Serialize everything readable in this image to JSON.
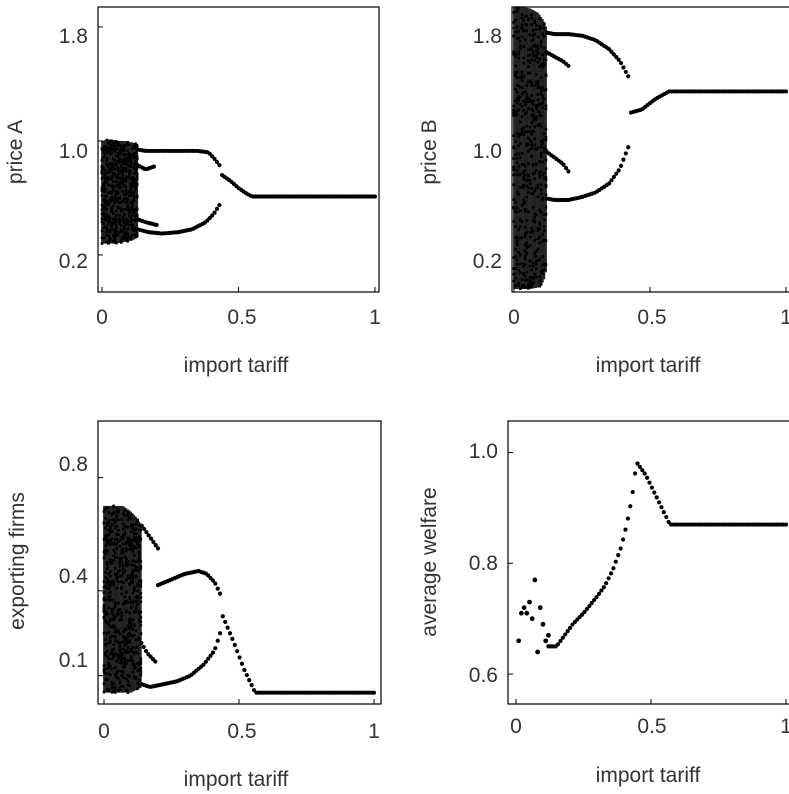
{
  "chart_data": [
    {
      "type": "scatter",
      "title": "",
      "xlabel": "import tariff",
      "ylabel": "price A",
      "xlim": [
        0,
        1
      ],
      "ylim": [
        -0.06,
        1.94
      ],
      "xticks": [
        0,
        0.5,
        1
      ],
      "xtick_labels": [
        "0",
        "0.5",
        "1"
      ],
      "yticks": [
        0.2,
        1.0,
        1.8
      ],
      "ytick_labels": [
        "0.2",
        "1.0",
        "1.8"
      ],
      "grid": false,
      "color": "#000000",
      "series": [
        {
          "kind": "band",
          "x": [
            0,
            0.02,
            0.05,
            0.08,
            0.11,
            0.13
          ],
          "low": [
            0.28,
            0.28,
            0.28,
            0.29,
            0.3,
            0.32
          ],
          "high": [
            1.0,
            1.01,
            1.0,
            1.0,
            0.99,
            0.98
          ]
        },
        {
          "kind": "curve",
          "x": [
            0.13,
            0.16,
            0.2,
            0.25,
            0.3,
            0.35,
            0.39,
            0.41,
            0.43
          ],
          "y": [
            0.94,
            0.93,
            0.93,
            0.93,
            0.93,
            0.93,
            0.92,
            0.88,
            0.83
          ]
        },
        {
          "kind": "curve",
          "x": [
            0.13,
            0.17,
            0.22,
            0.28,
            0.33,
            0.38,
            0.41,
            0.43
          ],
          "y": [
            0.38,
            0.36,
            0.35,
            0.36,
            0.38,
            0.43,
            0.49,
            0.55
          ]
        },
        {
          "kind": "curve",
          "x": [
            0.13,
            0.16,
            0.19
          ],
          "y": [
            0.83,
            0.8,
            0.82
          ]
        },
        {
          "kind": "curve",
          "x": [
            0.13,
            0.16,
            0.2
          ],
          "y": [
            0.45,
            0.43,
            0.41
          ]
        },
        {
          "kind": "curve",
          "x": [
            0.44,
            0.47,
            0.5,
            0.53,
            0.55,
            0.6,
            0.7,
            0.8,
            0.9,
            1.0
          ],
          "y": [
            0.76,
            0.72,
            0.67,
            0.63,
            0.61,
            0.61,
            0.61,
            0.61,
            0.61,
            0.61
          ]
        }
      ]
    },
    {
      "type": "scatter",
      "title": "",
      "xlabel": "import tariff",
      "ylabel": "price B",
      "xlim": [
        0,
        1
      ],
      "ylim": [
        0.05,
        1.94
      ],
      "xticks": [
        0,
        0.5,
        1
      ],
      "xtick_labels": [
        "0",
        "0.5",
        "1"
      ],
      "yticks": [
        0.2,
        1.0,
        1.8
      ],
      "ytick_labels": [
        "0.2",
        "1.0",
        "1.8"
      ],
      "grid": false,
      "color": "#000000",
      "series": [
        {
          "kind": "band",
          "x": [
            0,
            0.03,
            0.06,
            0.09,
            0.11,
            0.12
          ],
          "low": [
            0.07,
            0.07,
            0.07,
            0.08,
            0.12,
            0.2
          ],
          "high": [
            1.94,
            1.94,
            1.93,
            1.9,
            1.85,
            1.8
          ]
        },
        {
          "kind": "curve",
          "x": [
            0.12,
            0.15,
            0.2,
            0.25,
            0.3,
            0.35,
            0.39,
            0.42
          ],
          "y": [
            1.77,
            1.76,
            1.76,
            1.75,
            1.72,
            1.66,
            1.58,
            1.48
          ]
        },
        {
          "kind": "curve",
          "x": [
            0.12,
            0.15,
            0.2,
            0.25,
            0.3,
            0.35,
            0.39,
            0.42
          ],
          "y": [
            0.67,
            0.66,
            0.66,
            0.68,
            0.71,
            0.77,
            0.87,
            1.01
          ]
        },
        {
          "kind": "curve",
          "x": [
            0.12,
            0.15,
            0.18,
            0.2
          ],
          "y": [
            1.64,
            1.61,
            1.58,
            1.55
          ]
        },
        {
          "kind": "curve",
          "x": [
            0.12,
            0.15,
            0.18,
            0.2
          ],
          "y": [
            0.98,
            0.94,
            0.9,
            0.85
          ]
        },
        {
          "kind": "curve",
          "x": [
            0.43,
            0.47,
            0.52,
            0.57,
            0.6,
            0.7,
            0.8,
            0.9,
            1.0
          ],
          "y": [
            1.24,
            1.26,
            1.33,
            1.38,
            1.38,
            1.38,
            1.38,
            1.38,
            1.38
          ]
        }
      ]
    },
    {
      "type": "scatter",
      "title": "",
      "xlabel": "import tariff",
      "ylabel": "exporting firms",
      "xlim": [
        0,
        1
      ],
      "ylim": [
        0.0,
        1.0
      ],
      "xticks": [
        0,
        0.5,
        1
      ],
      "xtick_labels": [
        "0",
        "0.5",
        "1"
      ],
      "yticks": [
        0.1,
        0.4,
        0.8
      ],
      "ytick_labels": [
        "0.1",
        "0.4",
        "0.8"
      ],
      "grid": false,
      "color": "#000000",
      "series": [
        {
          "kind": "band",
          "x": [
            0,
            0.03,
            0.07,
            0.1,
            0.12,
            0.14
          ],
          "low": [
            0.04,
            0.04,
            0.04,
            0.04,
            0.05,
            0.06
          ],
          "high": [
            0.7,
            0.7,
            0.7,
            0.68,
            0.66,
            0.63
          ]
        },
        {
          "kind": "curve",
          "x": [
            0.14,
            0.17,
            0.2
          ],
          "y": [
            0.63,
            0.59,
            0.55
          ]
        },
        {
          "kind": "curve",
          "x": [
            0.2,
            0.25,
            0.3,
            0.35,
            0.38,
            0.41,
            0.43
          ],
          "y": [
            0.42,
            0.44,
            0.46,
            0.47,
            0.46,
            0.43,
            0.39
          ]
        },
        {
          "kind": "curve",
          "x": [
            0.14,
            0.17,
            0.22,
            0.27,
            0.32,
            0.37,
            0.41,
            0.43
          ],
          "y": [
            0.07,
            0.06,
            0.07,
            0.08,
            0.1,
            0.14,
            0.19,
            0.25
          ]
        },
        {
          "kind": "curve",
          "x": [
            0.13,
            0.16,
            0.19
          ],
          "y": [
            0.23,
            0.18,
            0.15
          ]
        },
        {
          "kind": "curve",
          "x": [
            0.44,
            0.48,
            0.52,
            0.56,
            0.6,
            0.7,
            0.8,
            0.9,
            1.0
          ],
          "y": [
            0.31,
            0.22,
            0.12,
            0.04,
            0.04,
            0.04,
            0.04,
            0.04,
            0.04
          ]
        }
      ]
    },
    {
      "type": "scatter",
      "title": "",
      "xlabel": "import tariff",
      "ylabel": "average welfare",
      "xlim": [
        0,
        1
      ],
      "ylim": [
        0.546,
        1.057
      ],
      "xticks": [
        0,
        0.5,
        1
      ],
      "xtick_labels": [
        "0",
        "0.5",
        "1"
      ],
      "yticks": [
        0.6,
        0.8,
        1.0
      ],
      "ytick_labels": [
        "0.6",
        "0.8",
        "1.0"
      ],
      "grid": false,
      "color": "#000000",
      "series": [
        {
          "kind": "points",
          "x": [
            0.01,
            0.02,
            0.03,
            0.04,
            0.05,
            0.06,
            0.07,
            0.08,
            0.09,
            0.1,
            0.11,
            0.12
          ],
          "y": [
            0.66,
            0.71,
            0.72,
            0.71,
            0.73,
            0.7,
            0.77,
            0.64,
            0.72,
            0.69,
            0.66,
            0.67
          ]
        },
        {
          "kind": "curve",
          "x": [
            0.12,
            0.15,
            0.18,
            0.21,
            0.25,
            0.3,
            0.33,
            0.36,
            0.39,
            0.41,
            0.43,
            0.44,
            0.45
          ],
          "y": [
            0.65,
            0.65,
            0.67,
            0.69,
            0.71,
            0.74,
            0.76,
            0.79,
            0.83,
            0.87,
            0.92,
            0.96,
            0.98
          ]
        },
        {
          "kind": "curve",
          "x": [
            0.45,
            0.48,
            0.51,
            0.54,
            0.57,
            0.6,
            0.7,
            0.8,
            0.9,
            1.0
          ],
          "y": [
            0.98,
            0.96,
            0.93,
            0.9,
            0.87,
            0.87,
            0.87,
            0.87,
            0.87,
            0.87
          ]
        }
      ]
    }
  ]
}
